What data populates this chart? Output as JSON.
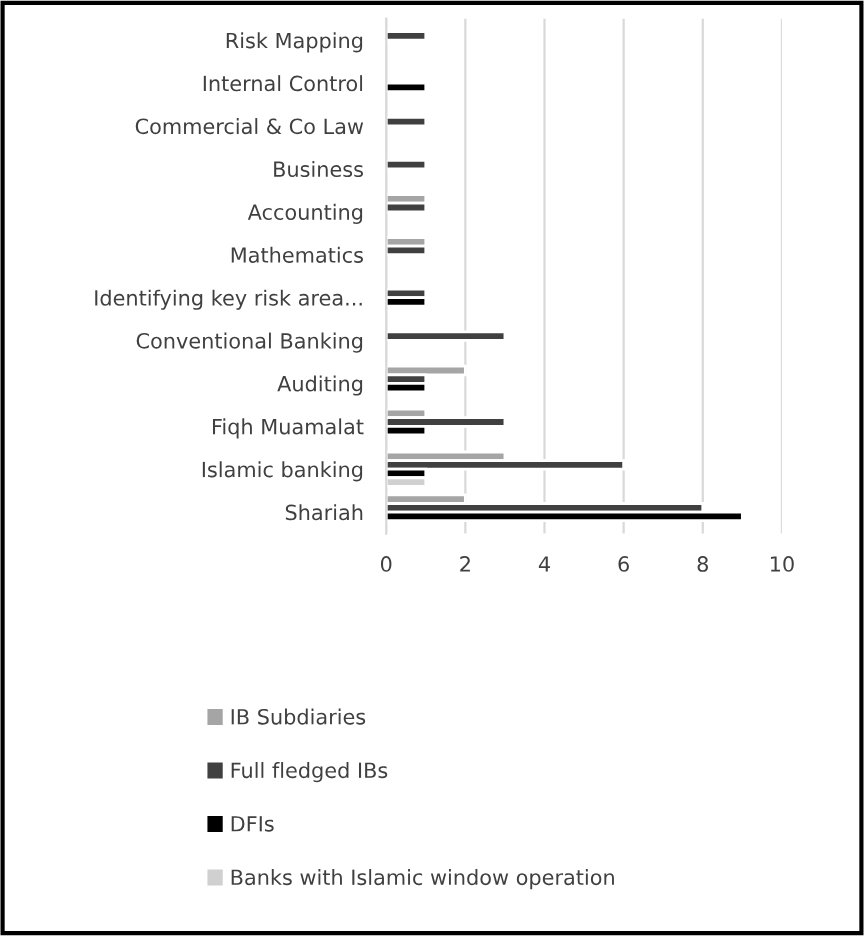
{
  "chart_data": {
    "type": "bar",
    "orientation": "horizontal",
    "categories": [
      "Risk Mapping",
      "Internal Control",
      "Commercial & Co Law",
      "Business",
      "Accounting",
      "Mathematics",
      "Identifying key risk area...",
      "Conventional Banking",
      "Auditing",
      "Fiqh Muamalat",
      "Islamic banking",
      "Shariah"
    ],
    "series": [
      {
        "name": "IB Subdiaries",
        "color": "#a5a5a5",
        "values": [
          null,
          null,
          null,
          null,
          1,
          1,
          null,
          null,
          2,
          1,
          3,
          2
        ]
      },
      {
        "name": "Full fledged IBs",
        "color": "#404040",
        "values": [
          1,
          null,
          1,
          1,
          1,
          1,
          1,
          3,
          1,
          3,
          6,
          8
        ]
      },
      {
        "name": "DFIs",
        "color": "#000000",
        "values": [
          null,
          1,
          null,
          null,
          null,
          null,
          1,
          null,
          1,
          1,
          1,
          9
        ]
      },
      {
        "name": "Banks with Islamic window operation",
        "color": "#d0d0d0",
        "values": [
          null,
          null,
          null,
          null,
          null,
          null,
          null,
          null,
          null,
          null,
          1,
          null
        ]
      }
    ],
    "xlim": [
      0,
      10
    ],
    "xticks": [
      0,
      2,
      4,
      6,
      8,
      10
    ],
    "grid": "x",
    "legend": "bottom"
  }
}
